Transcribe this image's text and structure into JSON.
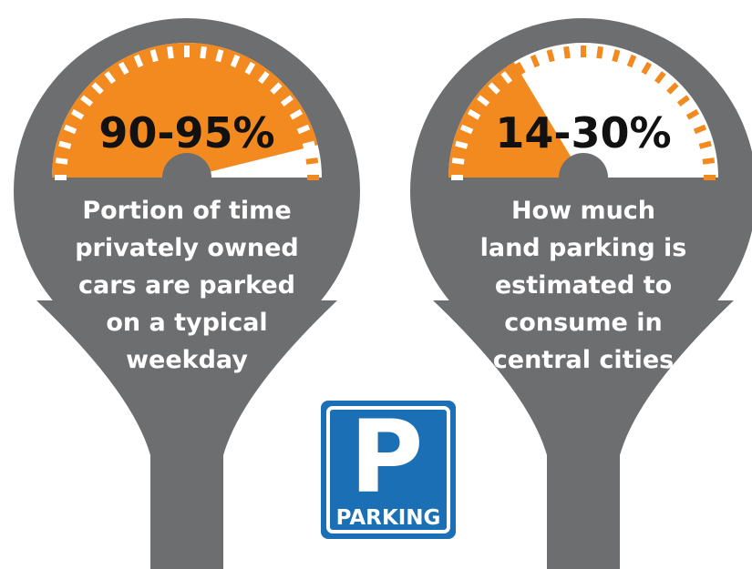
{
  "meters": [
    {
      "value": "90-95%",
      "description": [
        "Portion of time",
        "privately owned",
        "cars are parked",
        "on a typical",
        "weekday"
      ]
    },
    {
      "value": "14-30%",
      "description": [
        "How much",
        "land parking is",
        "estimated to",
        "consume in",
        "central cities"
      ]
    }
  ],
  "sign": {
    "letter": "P",
    "label": "PARKING"
  }
}
